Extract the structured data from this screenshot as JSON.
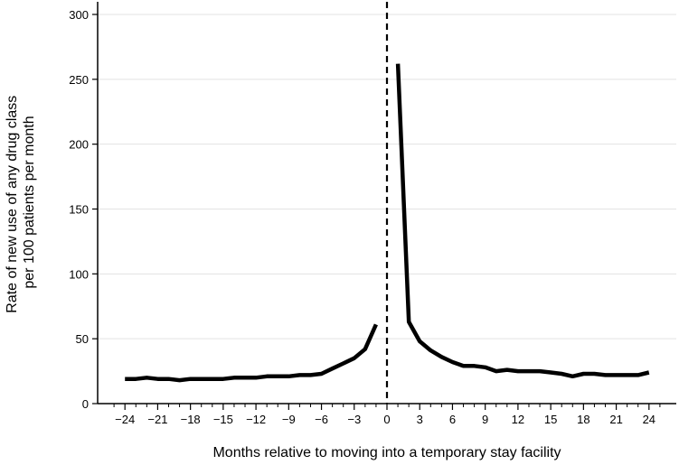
{
  "chart_data": {
    "type": "line",
    "title": "",
    "xlabel": "Months relative to moving into a temporary stay facility",
    "ylabel_lines": [
      "Rate of new use of any drug class",
      "per 100 patients per month"
    ],
    "xlim": [
      -26.5,
      26.5
    ],
    "ylim": [
      0,
      300
    ],
    "x_ticks": [
      -24,
      -21,
      -18,
      -15,
      -12,
      -9,
      -6,
      -3,
      0,
      3,
      6,
      9,
      12,
      15,
      18,
      21,
      24
    ],
    "x_tick_labels": [
      "−24",
      "−21",
      "−18",
      "−15",
      "−12",
      "−9",
      "−6",
      "−3",
      "0",
      "3",
      "6",
      "9",
      "12",
      "15",
      "18",
      "21",
      "24"
    ],
    "x_minor_ticks": [
      -25,
      -23,
      -22,
      -20,
      -19,
      -17,
      -16,
      -14,
      -13,
      -11,
      -10,
      -8,
      -7,
      -5,
      -4,
      -2,
      -1,
      1,
      2,
      4,
      5,
      7,
      8,
      10,
      11,
      13,
      14,
      16,
      17,
      19,
      20,
      22,
      23,
      25
    ],
    "y_ticks": [
      0,
      50,
      100,
      150,
      200,
      250,
      300
    ],
    "grid": "horizontal",
    "reference_line": {
      "x": 0,
      "style": "dashed"
    },
    "line_color": "#000000",
    "series": [
      {
        "segments": [
          {
            "x": [
              -24,
              -23,
              -22,
              -21,
              -20,
              -19,
              -18,
              -17,
              -16,
              -15,
              -14,
              -13,
              -12,
              -11,
              -10,
              -9,
              -8,
              -7,
              -6,
              -5,
              -4,
              -3,
              -2,
              -1
            ],
            "y": [
              19,
              19,
              20,
              19,
              19,
              18,
              19,
              19,
              19,
              19,
              20,
              20,
              20,
              21,
              21,
              21,
              22,
              22,
              23,
              27,
              31,
              35,
              42,
              61
            ]
          },
          {
            "x": [
              1,
              2,
              3,
              4,
              5,
              6,
              7,
              8,
              9,
              10,
              11,
              12,
              13,
              14,
              15,
              16,
              17,
              18,
              19,
              20,
              21,
              22,
              23,
              24
            ],
            "y": [
              262,
              63,
              48,
              41,
              36,
              32,
              29,
              29,
              28,
              25,
              26,
              25,
              25,
              25,
              24,
              23,
              21,
              23,
              23,
              22,
              22,
              22,
              22,
              24
            ]
          }
        ]
      }
    ]
  }
}
